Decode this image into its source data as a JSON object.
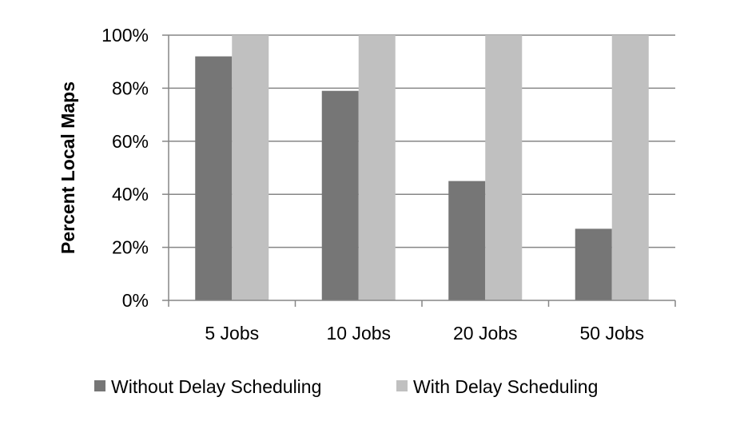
{
  "chart_data": {
    "type": "bar",
    "title": "",
    "xlabel": "",
    "ylabel": "Percent Local Maps",
    "categories": [
      "5 Jobs",
      "10 Jobs",
      "20 Jobs",
      "50 Jobs"
    ],
    "ylim": [
      0,
      100
    ],
    "yticks": [
      "0%",
      "20%",
      "40%",
      "60%",
      "80%",
      "100%"
    ],
    "grid": true,
    "legend_position": "bottom",
    "series": [
      {
        "name": "Without Delay Scheduling",
        "color": "#767676",
        "values": [
          92,
          79,
          45,
          27
        ]
      },
      {
        "name": "With Delay Scheduling",
        "color": "#c0c0c0",
        "values": [
          100,
          100,
          100,
          100
        ]
      }
    ]
  }
}
